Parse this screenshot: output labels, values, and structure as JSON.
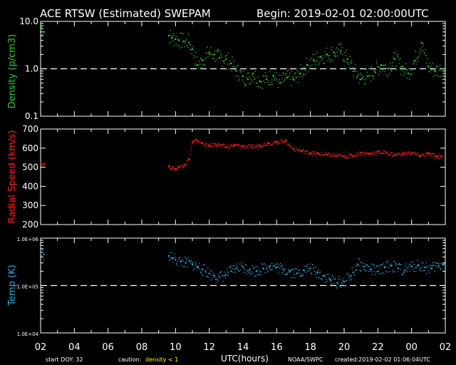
{
  "header": {
    "title": "ACE RTSW (Estimated) SWEPAM",
    "begin": "Begin: 2019-02-01 02:00:00UTC"
  },
  "colors": {
    "background": "#000000",
    "axes": "#ffffff",
    "density": "#33cc33",
    "speed": "#ff2020",
    "temp": "#33aadd",
    "caution": "#ffff00",
    "footer_small": "#ffffff"
  },
  "footer": {
    "start_doy": "start DOY:  32",
    "caution_label": "caution:",
    "caution_value": "density < 1",
    "xlabel": "UTC(hours)",
    "source": "NOAA/SWPC",
    "created": "created:2019-02-02 01:06:04UTC"
  },
  "chart_data": [
    {
      "type": "scatter",
      "name": "density",
      "ylabel": "Density (p/cm3)",
      "yscale": "log",
      "ylim": [
        0.1,
        10
      ],
      "ytick_labels": [
        "10.0",
        "1.0",
        "0.1"
      ],
      "yticks": [
        10,
        1,
        0.1
      ],
      "reference_line": 1.0,
      "x_hours": [
        0,
        0.2,
        7.6,
        7.8,
        8.0,
        8.2,
        8.5,
        8.8,
        9.0,
        9.3,
        9.6,
        10.0,
        10.3,
        10.6,
        11.0,
        11.3,
        11.6,
        12.0,
        12.3,
        12.6,
        13.0,
        13.4,
        13.8,
        14.2,
        14.6,
        15.0,
        15.4,
        15.8,
        16.2,
        16.6,
        17.0,
        17.4,
        17.8,
        18.2,
        18.6,
        19.0,
        19.4,
        19.8,
        20.2,
        20.6,
        21.0,
        21.4,
        21.8,
        22.2,
        22.6,
        23.0,
        23.4,
        23.8
      ],
      "y_values": [
        7.5,
        6.0,
        5.0,
        4.6,
        4.2,
        4.0,
        3.8,
        3.6,
        2.6,
        1.2,
        1.5,
        2.2,
        2.0,
        1.7,
        1.6,
        1.3,
        0.9,
        0.7,
        0.6,
        0.8,
        0.55,
        0.6,
        0.7,
        0.5,
        0.65,
        0.6,
        0.8,
        1.2,
        1.5,
        1.8,
        2.0,
        2.2,
        2.4,
        1.6,
        0.9,
        0.6,
        0.7,
        0.9,
        1.2,
        1.0,
        1.6,
        1.1,
        0.8,
        1.5,
        3.5,
        1.1,
        0.9,
        1.0
      ]
    },
    {
      "type": "scatter",
      "name": "speed",
      "ylabel": "Radial Speed (km/s)",
      "ylim": [
        200,
        700
      ],
      "ytick_labels": [
        "700",
        "600",
        "500",
        "400",
        "300",
        "200"
      ],
      "yticks": [
        700,
        600,
        500,
        400,
        300,
        200
      ],
      "x_hours": [
        0,
        0.2,
        7.6,
        7.8,
        8.0,
        8.2,
        8.5,
        8.8,
        9.0,
        9.3,
        9.6,
        10.0,
        10.5,
        11.0,
        11.5,
        12.0,
        12.5,
        13.0,
        13.5,
        14.0,
        14.5,
        15.0,
        15.5,
        16.0,
        16.5,
        17.0,
        17.5,
        18.0,
        18.5,
        19.0,
        19.5,
        20.0,
        20.5,
        21.0,
        21.5,
        22.0,
        22.5,
        23.0,
        23.5,
        23.8
      ],
      "y_values": [
        520,
        515,
        505,
        495,
        490,
        500,
        510,
        540,
        630,
        640,
        625,
        610,
        620,
        605,
        615,
        610,
        605,
        615,
        625,
        630,
        640,
        595,
        585,
        575,
        570,
        565,
        560,
        555,
        560,
        575,
        570,
        580,
        575,
        565,
        570,
        575,
        560,
        570,
        555,
        560
      ]
    },
    {
      "type": "scatter",
      "name": "temp",
      "ylabel": "Temp (K)",
      "yscale": "log",
      "ylim": [
        10000,
        1000000
      ],
      "ytick_labels": [
        "1.0E+06",
        "1.0E+05",
        "1.0E+04"
      ],
      "yticks": [
        1000000,
        100000,
        10000
      ],
      "reference_line": 100000,
      "x_hours": [
        0,
        0.2,
        7.6,
        7.8,
        8.0,
        8.3,
        8.6,
        9.0,
        9.3,
        9.6,
        10.0,
        10.3,
        10.6,
        11.0,
        11.3,
        11.6,
        12.0,
        12.4,
        12.8,
        13.2,
        13.6,
        14.0,
        14.4,
        14.8,
        15.2,
        15.6,
        16.0,
        16.4,
        16.8,
        17.2,
        17.6,
        18.0,
        18.4,
        18.8,
        19.2,
        19.6,
        20.0,
        20.4,
        20.8,
        21.2,
        21.6,
        22.0,
        22.4,
        22.8,
        23.2,
        23.6,
        23.9
      ],
      "y_values": [
        500000,
        450000,
        420000,
        380000,
        350000,
        320000,
        300000,
        280000,
        250000,
        220000,
        180000,
        160000,
        150000,
        170000,
        200000,
        230000,
        250000,
        220000,
        200000,
        230000,
        260000,
        240000,
        220000,
        200000,
        180000,
        210000,
        230000,
        190000,
        160000,
        130000,
        115000,
        120000,
        160000,
        280000,
        250000,
        220000,
        200000,
        240000,
        260000,
        230000,
        210000,
        250000,
        270000,
        240000,
        230000,
        260000,
        280000
      ]
    }
  ],
  "xaxis": {
    "range_hours": [
      0,
      24
    ],
    "tick_labels": [
      "02",
      "04",
      "06",
      "08",
      "10",
      "12",
      "14",
      "16",
      "18",
      "20",
      "22",
      "00",
      "02"
    ]
  }
}
